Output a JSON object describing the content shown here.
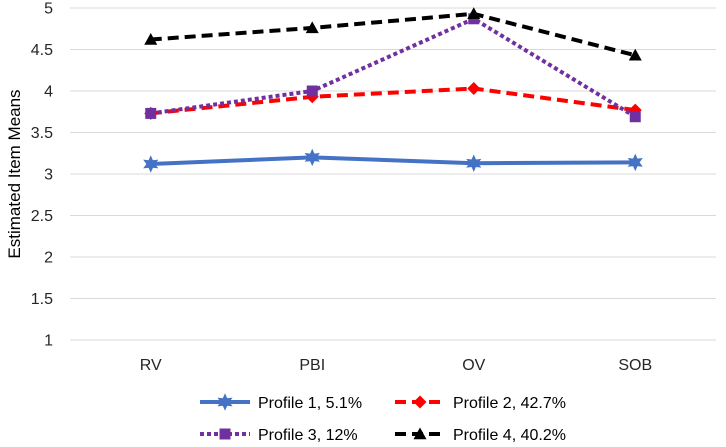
{
  "chart_data": {
    "type": "line",
    "title": "",
    "xlabel": "",
    "ylabel": "Estimated Item Means",
    "categories": [
      "RV",
      "PBI",
      "OV",
      "SOB"
    ],
    "ylim": [
      1,
      5
    ],
    "yticks": [
      1,
      1.5,
      2,
      2.5,
      3,
      3.5,
      4,
      4.5,
      5
    ],
    "ytick_labels": [
      "1",
      "1.5",
      "2",
      "2.5",
      "3",
      "3.5",
      "4",
      "4.5",
      "5"
    ],
    "grid": true,
    "legend_position": "bottom",
    "series": [
      {
        "name": "Profile 1, 5.1%",
        "values": [
          3.12,
          3.2,
          3.13,
          3.14
        ],
        "color": "#4472c4",
        "line_style": "solid",
        "marker": "star"
      },
      {
        "name": "Profile 2, 42.7%",
        "values": [
          3.73,
          3.93,
          4.03,
          3.77
        ],
        "color": "#ff0000",
        "line_style": "dashed",
        "marker": "diamond"
      },
      {
        "name": "Profile 3, 12%",
        "values": [
          3.73,
          4.0,
          4.87,
          3.69
        ],
        "color": "#7030a0",
        "line_style": "dotted",
        "marker": "square"
      },
      {
        "name": "Profile 4, 40.2%",
        "values": [
          4.62,
          4.76,
          4.93,
          4.43
        ],
        "color": "#000000",
        "line_style": "dashed",
        "marker": "triangle"
      }
    ]
  }
}
